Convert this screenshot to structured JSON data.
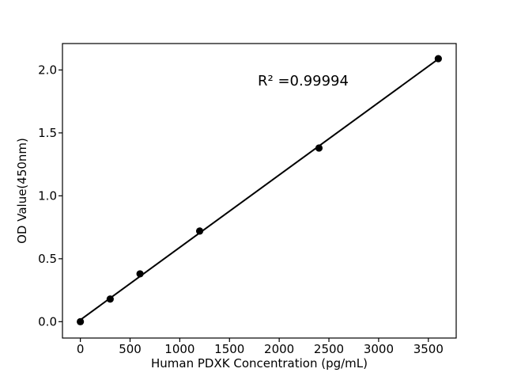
{
  "chart_data": {
    "type": "scatter",
    "title": "",
    "xlabel": "Human PDXK Concentration (pg/mL)",
    "ylabel": "OD Value(450nm)",
    "annotation": "R² =0.99994",
    "x": [
      0,
      300,
      600,
      1200,
      2400,
      3600
    ],
    "y": [
      0.0,
      0.18,
      0.38,
      0.72,
      1.38,
      2.09
    ],
    "fit": "linear",
    "xticks": [
      0,
      500,
      1000,
      1500,
      2000,
      2500,
      3000,
      3500
    ],
    "xtick_labels": [
      "0",
      "500",
      "1000",
      "1500",
      "2000",
      "2500",
      "3000",
      "3500"
    ],
    "yticks": [
      0.0,
      0.5,
      1.0,
      1.5,
      2.0
    ],
    "ytick_labels": [
      "0.0",
      "0.5",
      "1.0",
      "1.5",
      "2.0"
    ],
    "xlim": [
      -180,
      3780
    ],
    "ylim": [
      -0.13,
      2.21
    ],
    "grid": false,
    "legend": null,
    "colors": {
      "marker": "#000000",
      "line": "#000000",
      "text": "#000000",
      "background": "#ffffff",
      "spine": "#000000"
    }
  }
}
